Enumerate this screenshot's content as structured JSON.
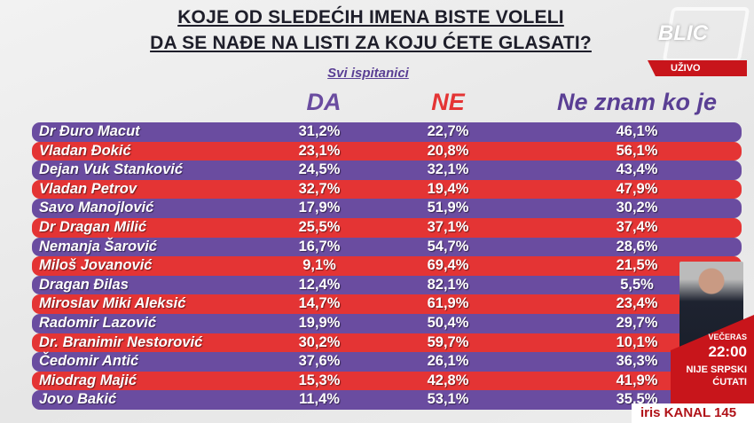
{
  "title": {
    "line1": "KOJE OD SLEDEĆIH IMENA BISTE VOLELI",
    "line2": "DA SE NAĐE NA LISTI ZA KOJU ĆETE GLASATI?"
  },
  "subtitle": "Svi ispitanici",
  "columns": {
    "da": "DA",
    "ne": "NE",
    "ne_znam": "Ne znam ko je"
  },
  "colors": {
    "purple": "#6a4ca0",
    "red": "#e43434"
  },
  "rows": [
    {
      "name": "Dr Đuro Macut",
      "da": "31,2%",
      "ne": "22,7%",
      "ne_znam": "46,1%"
    },
    {
      "name": "Vladan Đokić",
      "da": "23,1%",
      "ne": "20,8%",
      "ne_znam": "56,1%"
    },
    {
      "name": "Dejan Vuk Stanković",
      "da": "24,5%",
      "ne": "32,1%",
      "ne_znam": "43,4%"
    },
    {
      "name": "Vladan Petrov",
      "da": "32,7%",
      "ne": "19,4%",
      "ne_znam": "47,9%"
    },
    {
      "name": "Savo Manojlović",
      "da": "17,9%",
      "ne": "51,9%",
      "ne_znam": "30,2%"
    },
    {
      "name": "Dr Dragan Milić",
      "da": "25,5%",
      "ne": "37,1%",
      "ne_znam": "37,4%"
    },
    {
      "name": "Nemanja Šarović",
      "da": "16,7%",
      "ne": "54,7%",
      "ne_znam": "28,6%"
    },
    {
      "name": "Miloš Jovanović",
      "da": "9,1%",
      "ne": "69,4%",
      "ne_znam": "21,5%"
    },
    {
      "name": "Dragan Đilas",
      "da": "12,4%",
      "ne": "82,1%",
      "ne_znam": "5,5%"
    },
    {
      "name": "Miroslav Miki Aleksić",
      "da": "14,7%",
      "ne": "61,9%",
      "ne_znam": "23,4%"
    },
    {
      "name": "Radomir Lazović",
      "da": "19,9%",
      "ne": "50,4%",
      "ne_znam": "29,7%"
    },
    {
      "name": "Dr. Branimir Nestorović",
      "da": "30,2%",
      "ne": "59,7%",
      "ne_znam": "10,1%"
    },
    {
      "name": "Čedomir Antić",
      "da": "37,6%",
      "ne": "26,1%",
      "ne_znam": "36,3%"
    },
    {
      "name": "Miodrag Majić",
      "da": "15,3%",
      "ne": "42,8%",
      "ne_znam": "41,9%"
    },
    {
      "name": "Jovo Bakić",
      "da": "11,4%",
      "ne": "53,1%",
      "ne_znam": "35,5%"
    }
  ],
  "broadcast": {
    "logo": "BLIC",
    "live": "UŽIVO",
    "promo_label": "VEČERAS",
    "promo_time": "22:00",
    "promo_show_line1": "NIJE SRPSKI",
    "promo_show_line2": "ĆUTATI",
    "channel": "iris KANAL 145"
  }
}
